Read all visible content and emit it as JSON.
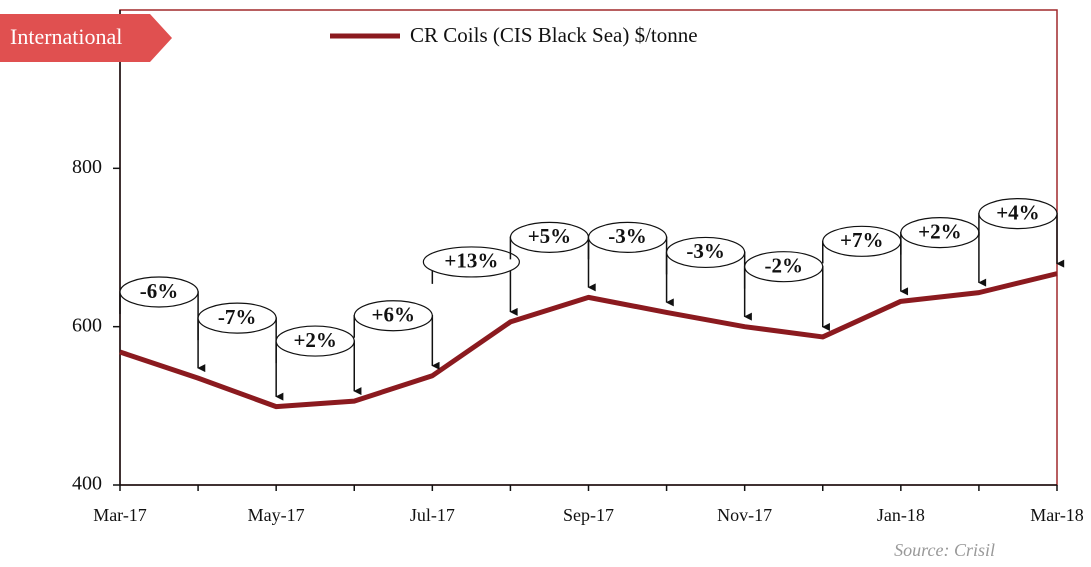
{
  "header": {
    "tag": "International"
  },
  "chart_data": {
    "type": "line",
    "categories": [
      "Mar-17",
      null,
      "May-17",
      null,
      "Jul-17",
      null,
      "Sep-17",
      null,
      "Nov-17",
      null,
      "Jan-18",
      null,
      "Mar-18"
    ],
    "series": [
      {
        "name": "CR Coils (CIS Black Sea) $/tonne",
        "color": "#8b1a1f",
        "values": [
          568,
          535,
          499,
          506,
          538,
          606,
          637,
          618,
          600,
          587,
          632,
          643,
          667
        ]
      }
    ],
    "ylim": [
      400,
      1000
    ],
    "yticks": [
      400,
      600,
      800
    ],
    "annotations": [
      "-6%",
      "-7%",
      "+2%",
      "+6%",
      "+13%",
      "+5%",
      "-3%",
      "-3%",
      "-2%",
      "+7%",
      "+2%",
      "+4%"
    ],
    "source": "Source: Crisil"
  }
}
